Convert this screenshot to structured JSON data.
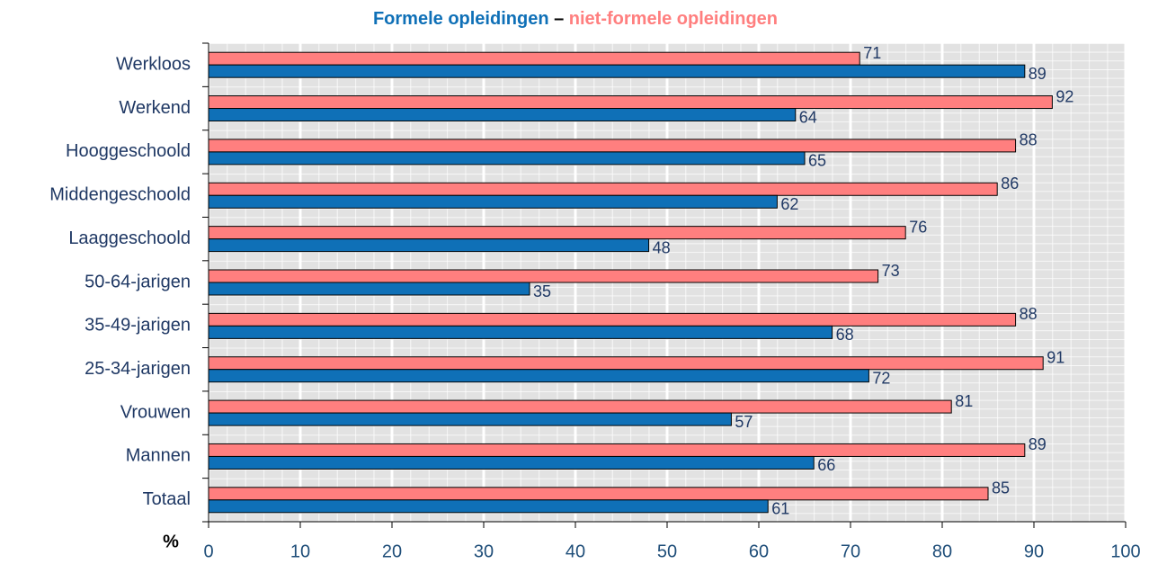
{
  "chart_data": {
    "type": "hbar",
    "title_separator": "–",
    "x_label": "%",
    "categories": [
      "Werkloos",
      "Werkend",
      "Hooggeschoold",
      "Middengeschoold",
      "Laaggeschoold",
      "50-64-jarigen",
      "35-49-jarigen",
      "25-34-jarigen",
      "Vrouwen",
      "Mannen",
      "Totaal"
    ],
    "series": [
      {
        "name": "Formele opleidingen",
        "color": "#0f70b7",
        "values": [
          89,
          64,
          65,
          62,
          48,
          35,
          68,
          72,
          57,
          66,
          61
        ]
      },
      {
        "name": "niet-formele opleidingen",
        "color": "#ff7f7f",
        "values": [
          71,
          92,
          88,
          86,
          76,
          73,
          88,
          91,
          81,
          89,
          85
        ]
      }
    ],
    "xlim": [
      0,
      100
    ],
    "xticks": [
      0,
      10,
      20,
      30,
      40,
      50,
      60,
      70,
      80,
      90,
      100
    ],
    "grid": true
  }
}
